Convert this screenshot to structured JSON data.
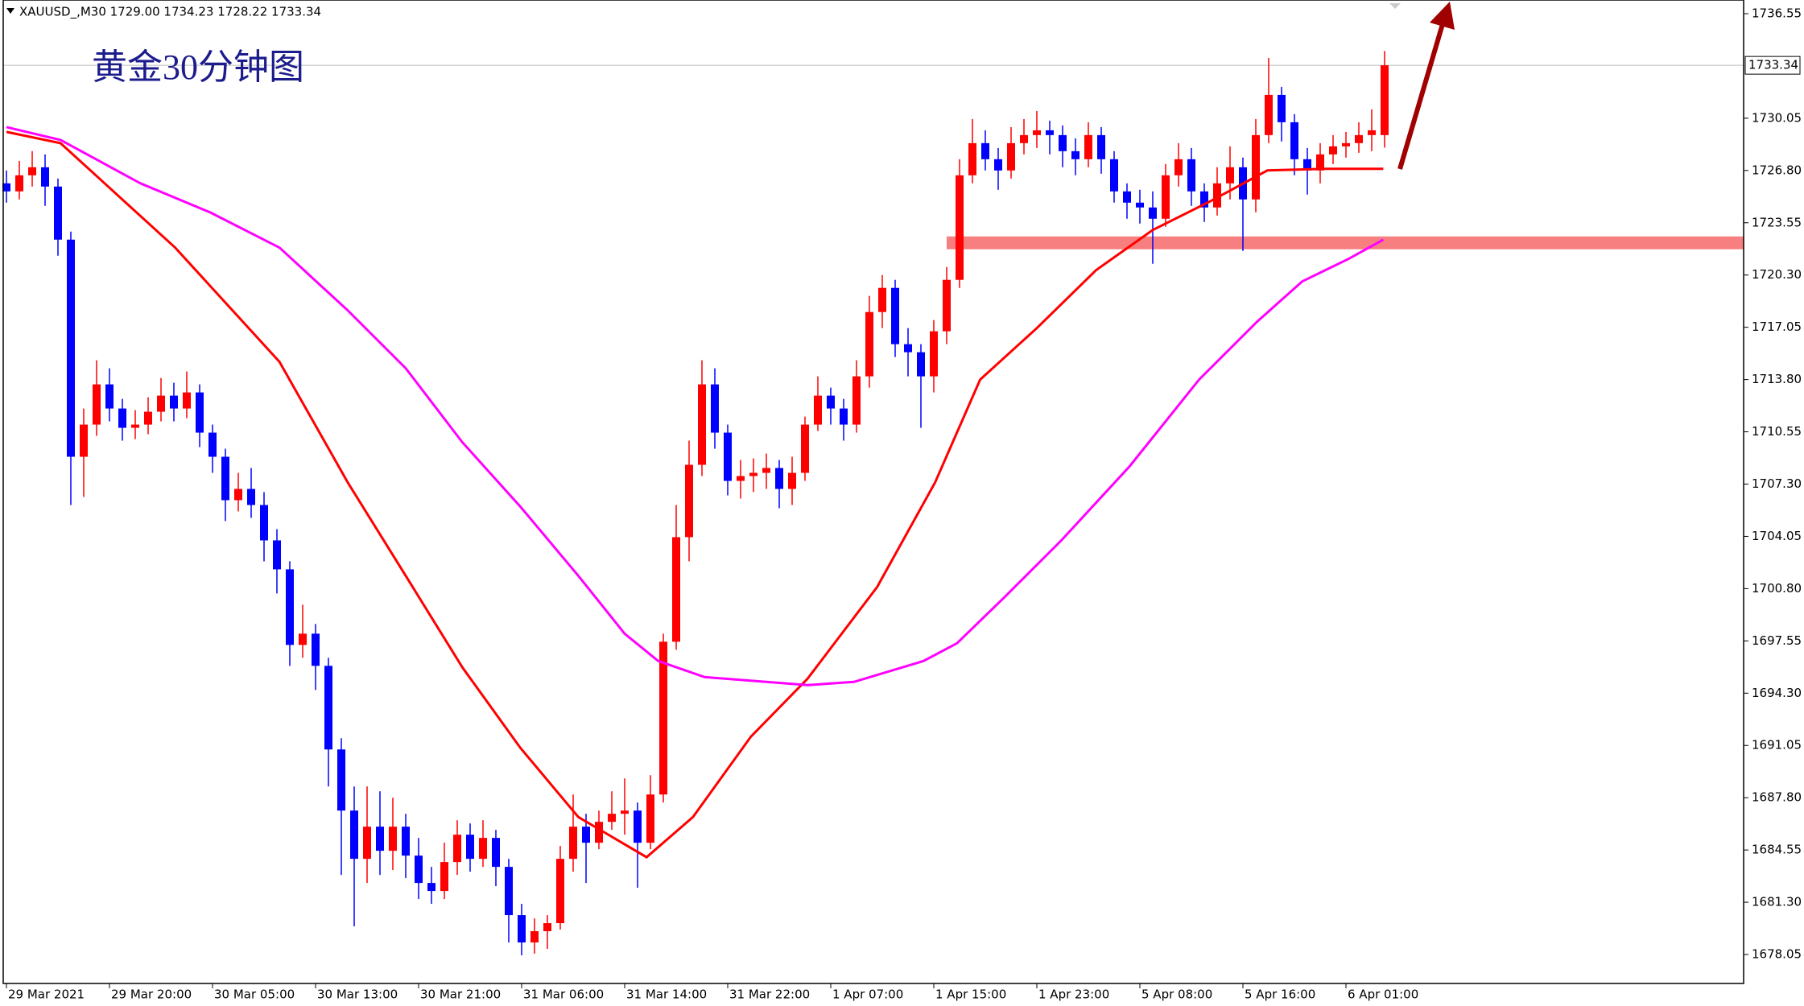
{
  "chart_data": {
    "type": "candlestick",
    "header": "XAUUSD_,M30 1729.00 1734.23 1728.22 1733.34",
    "title": "黄金30分钟图",
    "up_color": "#ff0000",
    "down_color": "#0000ff",
    "grid": false,
    "ylim": [
      1676.25,
      1737.4
    ],
    "yticks": [
      1736.55,
      1730.05,
      {
        "value": 1726.8,
        "label": "1726.80"
      },
      1723.55,
      {
        "value": 1720.3,
        "label": "1720.30"
      },
      1717.05,
      {
        "value": 1713.8,
        "label": "1713.80"
      },
      1710.55,
      {
        "value": 1707.3,
        "label": "1707.30"
      },
      1704.05,
      {
        "value": 1700.8,
        "label": "1700.80"
      },
      1697.55,
      {
        "value": 1694.3,
        "label": "1694.30"
      },
      1691.05,
      {
        "value": 1687.8,
        "label": "1687.80"
      },
      1684.55,
      {
        "value": 1681.3,
        "label": "1681.30"
      },
      1678.05
    ],
    "xlim": [
      -0.25,
      134.875
    ],
    "xticks": [
      {
        "value": 0,
        "label": "29 Mar 2021"
      },
      {
        "value": 8,
        "label": "29 Mar 20:00"
      },
      {
        "value": 16,
        "label": "30 Mar 05:00"
      },
      {
        "value": 24,
        "label": "30 Mar 13:00"
      },
      {
        "value": 32,
        "label": "30 Mar 21:00"
      },
      {
        "value": 40,
        "label": "31 Mar 06:00"
      },
      {
        "value": 48,
        "label": "31 Mar 14:00"
      },
      {
        "value": 56,
        "label": "31 Mar 22:00"
      },
      {
        "value": 64,
        "label": "1 Apr 07:00"
      },
      {
        "value": 72,
        "label": "1 Apr 15:00"
      },
      {
        "value": 80,
        "label": "1 Apr 23:00"
      },
      {
        "value": 88,
        "label": "5 Apr 08:00"
      },
      {
        "value": 96,
        "label": "5 Apr 16:00"
      },
      {
        "value": 104,
        "label": "6 Apr 01:00"
      }
    ],
    "open": [
      1726.0,
      1725.5,
      1726.5,
      1727.0,
      1725.8,
      1722.5,
      1709.0,
      1711.0,
      1713.5,
      1712.0,
      1710.8,
      1711.0,
      1711.8,
      1712.8,
      1712.0,
      1713.0,
      1710.5,
      1709.0,
      1706.3,
      1707.0,
      1706.0,
      1703.8,
      1702.0,
      1697.3,
      1698.0,
      1696.0,
      1690.8,
      1687.0,
      1684.0,
      1686.0,
      1684.5,
      1686.0,
      1684.2,
      1682.5,
      1682.0,
      1683.8,
      1685.5,
      1684.0,
      1685.3,
      1683.5,
      1680.5,
      1678.8,
      1679.5,
      1680.0,
      1684.0,
      1686.0,
      1685.0,
      1686.3,
      1686.8,
      1687.0,
      1685.0,
      1688.0,
      1697.5,
      1704.0,
      1708.5,
      1713.5,
      1710.5,
      1707.5,
      1707.8,
      1708.0,
      1708.3,
      1707.0,
      1708.0,
      1711.0,
      1712.8,
      1712.0,
      1711.0,
      1714.0,
      1718.0,
      1719.5,
      1716.0,
      1715.5,
      1714.0,
      1716.8,
      1720.0,
      1726.5,
      1728.5,
      1727.5,
      1726.8,
      1728.5,
      1729.0,
      1729.3,
      1729.0,
      1728.0,
      1727.5,
      1729.0,
      1727.5,
      1725.5,
      1724.8,
      1724.5,
      1723.8,
      1726.5,
      1727.5,
      1725.5,
      1724.5,
      1726.0,
      1727.0,
      1725.0,
      1729.0,
      1731.5,
      1729.8,
      1727.5,
      1726.8,
      1727.8,
      1728.3,
      1728.5,
      1729.0,
      1729.0
    ],
    "high": [
      1726.8,
      1727.4,
      1728.0,
      1727.8,
      1726.3,
      1723.0,
      1712.0,
      1715.0,
      1714.5,
      1712.6,
      1711.9,
      1712.7,
      1713.9,
      1713.6,
      1714.3,
      1713.5,
      1711.0,
      1709.5,
      1708.0,
      1708.3,
      1706.8,
      1704.5,
      1702.5,
      1699.8,
      1698.6,
      1696.5,
      1691.5,
      1688.5,
      1688.5,
      1688.2,
      1687.8,
      1686.8,
      1685.3,
      1683.5,
      1685.0,
      1686.4,
      1686.2,
      1686.4,
      1685.8,
      1684.0,
      1681.2,
      1680.3,
      1680.5,
      1684.8,
      1688.0,
      1686.8,
      1687.0,
      1688.2,
      1689.0,
      1687.5,
      1689.2,
      1698.0,
      1706.0,
      1710.0,
      1715.0,
      1714.5,
      1711.0,
      1708.8,
      1708.9,
      1709.2,
      1708.8,
      1709.0,
      1711.5,
      1714.0,
      1713.3,
      1712.6,
      1715.0,
      1719.0,
      1720.3,
      1720.0,
      1717.0,
      1716.0,
      1717.5,
      1720.8,
      1727.5,
      1730.0,
      1729.3,
      1728.2,
      1729.5,
      1730.0,
      1730.5,
      1729.9,
      1729.6,
      1728.8,
      1729.8,
      1729.5,
      1728.0,
      1726.0,
      1725.6,
      1725.5,
      1727.2,
      1728.5,
      1728.2,
      1726.0,
      1727.0,
      1728.3,
      1727.6,
      1730.0,
      1733.8,
      1732.0,
      1730.3,
      1728.2,
      1728.5,
      1729.0,
      1729.2,
      1729.8,
      1730.6,
      1734.23
    ],
    "low": [
      1724.8,
      1725.0,
      1725.8,
      1724.6,
      1721.5,
      1706.0,
      1706.5,
      1710.3,
      1711.2,
      1710.0,
      1710.1,
      1710.4,
      1711.2,
      1711.2,
      1711.4,
      1709.6,
      1708.0,
      1705.0,
      1705.6,
      1705.2,
      1702.5,
      1700.5,
      1696.0,
      1696.5,
      1694.5,
      1688.5,
      1683.0,
      1679.8,
      1682.5,
      1683.0,
      1683.3,
      1682.8,
      1681.5,
      1681.2,
      1681.5,
      1683.0,
      1683.2,
      1683.5,
      1682.3,
      1678.8,
      1678.0,
      1678.1,
      1678.4,
      1679.6,
      1683.2,
      1682.5,
      1684.6,
      1685.8,
      1685.5,
      1682.2,
      1684.6,
      1687.5,
      1697.0,
      1702.5,
      1707.8,
      1709.5,
      1706.6,
      1706.4,
      1706.8,
      1707.0,
      1705.8,
      1706.0,
      1707.5,
      1710.6,
      1711.0,
      1710.0,
      1710.5,
      1713.3,
      1717.0,
      1715.2,
      1714.0,
      1710.8,
      1713.0,
      1716.0,
      1719.5,
      1726.0,
      1726.8,
      1725.6,
      1726.3,
      1727.8,
      1728.2,
      1727.8,
      1727.0,
      1726.5,
      1727.0,
      1726.6,
      1724.8,
      1723.8,
      1723.5,
      1721.0,
      1723.3,
      1725.8,
      1724.6,
      1723.6,
      1724.0,
      1725.0,
      1721.8,
      1724.2,
      1728.5,
      1728.6,
      1726.5,
      1725.3,
      1726.0,
      1727.2,
      1727.6,
      1727.9,
      1728.0,
      1728.22
    ],
    "close": [
      1725.5,
      1726.5,
      1727.0,
      1725.8,
      1722.5,
      1709.0,
      1711.0,
      1713.5,
      1712.0,
      1710.8,
      1711.0,
      1711.8,
      1712.8,
      1712.0,
      1713.0,
      1710.5,
      1709.0,
      1706.3,
      1707.0,
      1706.0,
      1703.8,
      1702.0,
      1697.3,
      1698.0,
      1696.0,
      1690.8,
      1687.0,
      1684.0,
      1686.0,
      1684.5,
      1686.0,
      1684.2,
      1682.5,
      1682.0,
      1683.8,
      1685.5,
      1684.0,
      1685.3,
      1683.5,
      1680.5,
      1678.8,
      1679.5,
      1680.0,
      1684.0,
      1686.0,
      1685.0,
      1686.3,
      1686.8,
      1687.0,
      1685.0,
      1688.0,
      1697.5,
      1704.0,
      1708.5,
      1713.5,
      1710.5,
      1707.5,
      1707.8,
      1708.0,
      1708.3,
      1707.0,
      1708.0,
      1711.0,
      1712.8,
      1712.0,
      1711.0,
      1714.0,
      1718.0,
      1719.5,
      1716.0,
      1715.5,
      1714.0,
      1716.8,
      1720.0,
      1726.5,
      1728.5,
      1727.5,
      1726.8,
      1728.5,
      1729.0,
      1729.3,
      1729.0,
      1728.0,
      1727.5,
      1729.0,
      1727.5,
      1725.5,
      1724.8,
      1724.5,
      1723.8,
      1726.5,
      1727.5,
      1725.5,
      1724.5,
      1726.0,
      1727.0,
      1725.0,
      1729.0,
      1731.5,
      1729.8,
      1727.5,
      1726.8,
      1727.8,
      1728.3,
      1728.5,
      1729.0,
      1729.3,
      1733.34
    ],
    "moving_averages": [
      {
        "color": "#ff0000",
        "x": [
          0,
          4.2,
          13.1,
          21.2,
          26.5,
          31.0,
          35.4,
          39.9,
          44.4,
          49.7,
          53.3,
          57.8,
          62.2,
          67.6,
          72.1,
          75.6,
          80.0,
          84.6,
          89.0,
          93.5,
          97.9,
          102.4,
          106.9
        ],
        "values": [
          1729.2,
          1728.5,
          1722.0,
          1714.9,
          1707.4,
          1701.6,
          1695.9,
          1690.9,
          1686.6,
          1684.1,
          1686.6,
          1691.6,
          1695.2,
          1700.9,
          1707.4,
          1713.8,
          1717.0,
          1720.6,
          1723.1,
          1724.9,
          1726.8,
          1726.9,
          1726.9
        ]
      },
      {
        "color": "#ff00ff",
        "x": [
          0,
          4.2,
          10.4,
          15.8,
          21.2,
          26.5,
          31.0,
          35.4,
          39.9,
          44.4,
          48.0,
          50.6,
          54.2,
          62.2,
          65.8,
          71.2,
          73.8,
          77.4,
          81.9,
          87.2,
          92.6,
          97.1,
          100.6,
          104.2,
          106.9
        ],
        "values": [
          1729.5,
          1728.7,
          1726.0,
          1724.2,
          1722.0,
          1718.1,
          1714.5,
          1709.9,
          1705.9,
          1701.6,
          1698.0,
          1696.3,
          1695.3,
          1694.8,
          1695.0,
          1696.3,
          1697.4,
          1700.2,
          1703.8,
          1708.4,
          1713.8,
          1717.4,
          1719.9,
          1721.3,
          1722.5
        ]
      }
    ],
    "zone": {
      "color": "#f77f7f",
      "start": 73,
      "low": 1721.9,
      "high": 1722.7
    }
  }
}
